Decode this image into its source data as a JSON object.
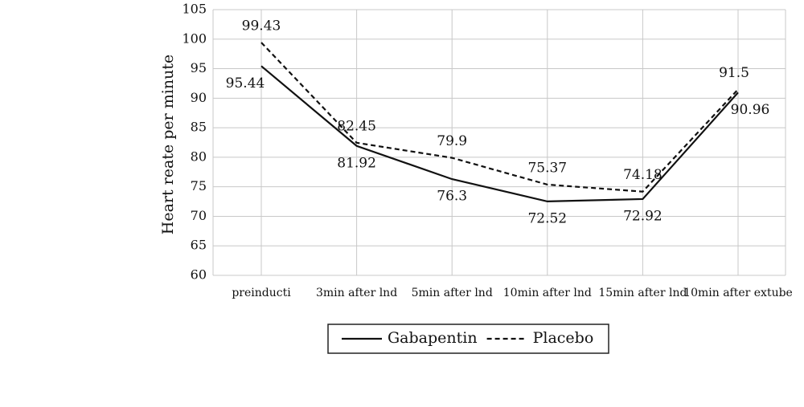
{
  "chart_data": {
    "type": "line",
    "y_label": "Heart reate per minute",
    "categories": [
      "preinducti",
      "3min after lnd",
      "5min after lnd",
      "10min after lnd",
      "15min after lnd",
      "10min after extube"
    ],
    "series": [
      {
        "name": "Gabapentin",
        "color": "#111111",
        "dash": "solid",
        "values": [
          95.44,
          81.92,
          76.3,
          72.52,
          72.92,
          90.96
        ]
      },
      {
        "name": "Placebo",
        "color": "#111111",
        "dash": "dashed",
        "values": [
          99.43,
          82.45,
          79.9,
          75.37,
          74.18,
          91.5
        ]
      }
    ],
    "ylim": [
      60,
      105
    ],
    "yticks": [
      60,
      65,
      70,
      75,
      80,
      85,
      90,
      95,
      100,
      105
    ],
    "grid": true,
    "legend": "bottom"
  }
}
